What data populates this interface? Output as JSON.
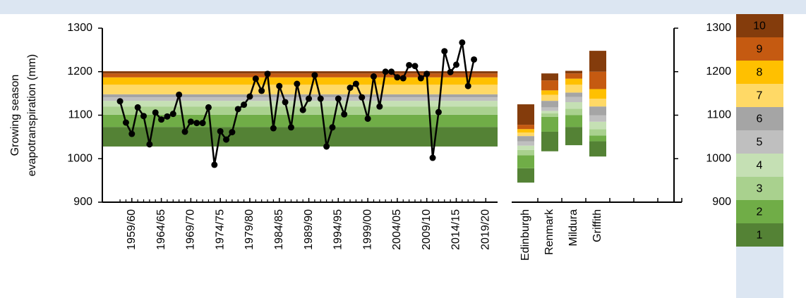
{
  "chart_data": [
    {
      "type": "line",
      "y_label": [
        "Growing season",
        "evapotranspiration (mm)"
      ],
      "x": [
        1957,
        1958,
        1959,
        1960,
        1961,
        1962,
        1963,
        1964,
        1965,
        1966,
        1967,
        1968,
        1969,
        1970,
        1971,
        1972,
        1973,
        1974,
        1975,
        1976,
        1977,
        1978,
        1979,
        1980,
        1981,
        1982,
        1983,
        1984,
        1985,
        1986,
        1987,
        1988,
        1989,
        1990,
        1991,
        1992,
        1993,
        1994,
        1995,
        1996,
        1997,
        1998,
        1999,
        2000,
        2001,
        2002,
        2003,
        2004,
        2005,
        2006,
        2007,
        2008,
        2009,
        2010,
        2011,
        2012,
        2013,
        2014,
        2015,
        2016,
        2017
      ],
      "values": [
        1132,
        1083,
        1057,
        1118,
        1098,
        1033,
        1106,
        1090,
        1097,
        1103,
        1147,
        1062,
        1085,
        1082,
        1082,
        1118,
        986,
        1063,
        1044,
        1061,
        1114,
        1124,
        1143,
        1184,
        1156,
        1195,
        1070,
        1167,
        1130,
        1072,
        1172,
        1112,
        1138,
        1192,
        1138,
        1028,
        1072,
        1138,
        1102,
        1163,
        1172,
        1141,
        1092,
        1189,
        1120,
        1200,
        1200,
        1187,
        1185,
        1215,
        1213,
        1185,
        1195,
        1002,
        1107,
        1247,
        1199,
        1216,
        1267,
        1167,
        1228
      ],
      "color": "#000000",
      "band_bounds": [
        1028,
        1073,
        1101,
        1120,
        1133,
        1141,
        1148,
        1170,
        1187,
        1196,
        1201
      ],
      "xlim": [
        1954,
        2021
      ],
      "xticks": [
        {
          "value": 1959,
          "label": "1959/60"
        },
        {
          "value": 1964,
          "label": "1964/65"
        },
        {
          "value": 1969,
          "label": "1969/70"
        },
        {
          "value": 1974,
          "label": "1974/75"
        },
        {
          "value": 1979,
          "label": "1979/80"
        },
        {
          "value": 1984,
          "label": "1984/85"
        },
        {
          "value": 1989,
          "label": "1989/90"
        },
        {
          "value": 1994,
          "label": "1994/95"
        },
        {
          "value": 1999,
          "label": "1999/00"
        },
        {
          "value": 2004,
          "label": "2004/05"
        },
        {
          "value": 2009,
          "label": "2009/10"
        },
        {
          "value": 2014,
          "label": "2014/15"
        },
        {
          "value": 2019,
          "label": "2019/20"
        }
      ],
      "ylim": [
        900,
        1300
      ],
      "yticks": [
        900,
        1000,
        1100,
        1200,
        1300
      ]
    },
    {
      "type": "range_stack",
      "categories": [
        "Edinburgh",
        "Renmark",
        "Mildura",
        "Griffith"
      ],
      "series": [
        {
          "name": "1",
          "color": "#548235"
        },
        {
          "name": "2",
          "color": "#70ad47"
        },
        {
          "name": "3",
          "color": "#a9d18e"
        },
        {
          "name": "4",
          "color": "#c5e0b4"
        },
        {
          "name": "5",
          "color": "#bfbfbf"
        },
        {
          "name": "6",
          "color": "#a5a5a5"
        },
        {
          "name": "7",
          "color": "#ffd966"
        },
        {
          "name": "8",
          "color": "#ffc000"
        },
        {
          "name": "9",
          "color": "#c55a11"
        },
        {
          "name": "10",
          "color": "#843c0c"
        }
      ],
      "bounds": [
        [
          945,
          978,
          1008,
          1020,
          1030,
          1040,
          1052,
          1060,
          1068,
          1078,
          1125
        ],
        [
          1017,
          1062,
          1096,
          1104,
          1110,
          1118,
          1133,
          1147,
          1157,
          1180,
          1196
        ],
        [
          1031,
          1073,
          1100,
          1115,
          1130,
          1142,
          1152,
          1170,
          1184,
          1196,
          1202
        ],
        [
          1005,
          1040,
          1053,
          1068,
          1085,
          1100,
          1120,
          1138,
          1160,
          1200,
          1248
        ]
      ],
      "ylim": [
        900,
        1300
      ],
      "yticks": [
        900,
        1000,
        1100,
        1200,
        1300
      ]
    }
  ]
}
